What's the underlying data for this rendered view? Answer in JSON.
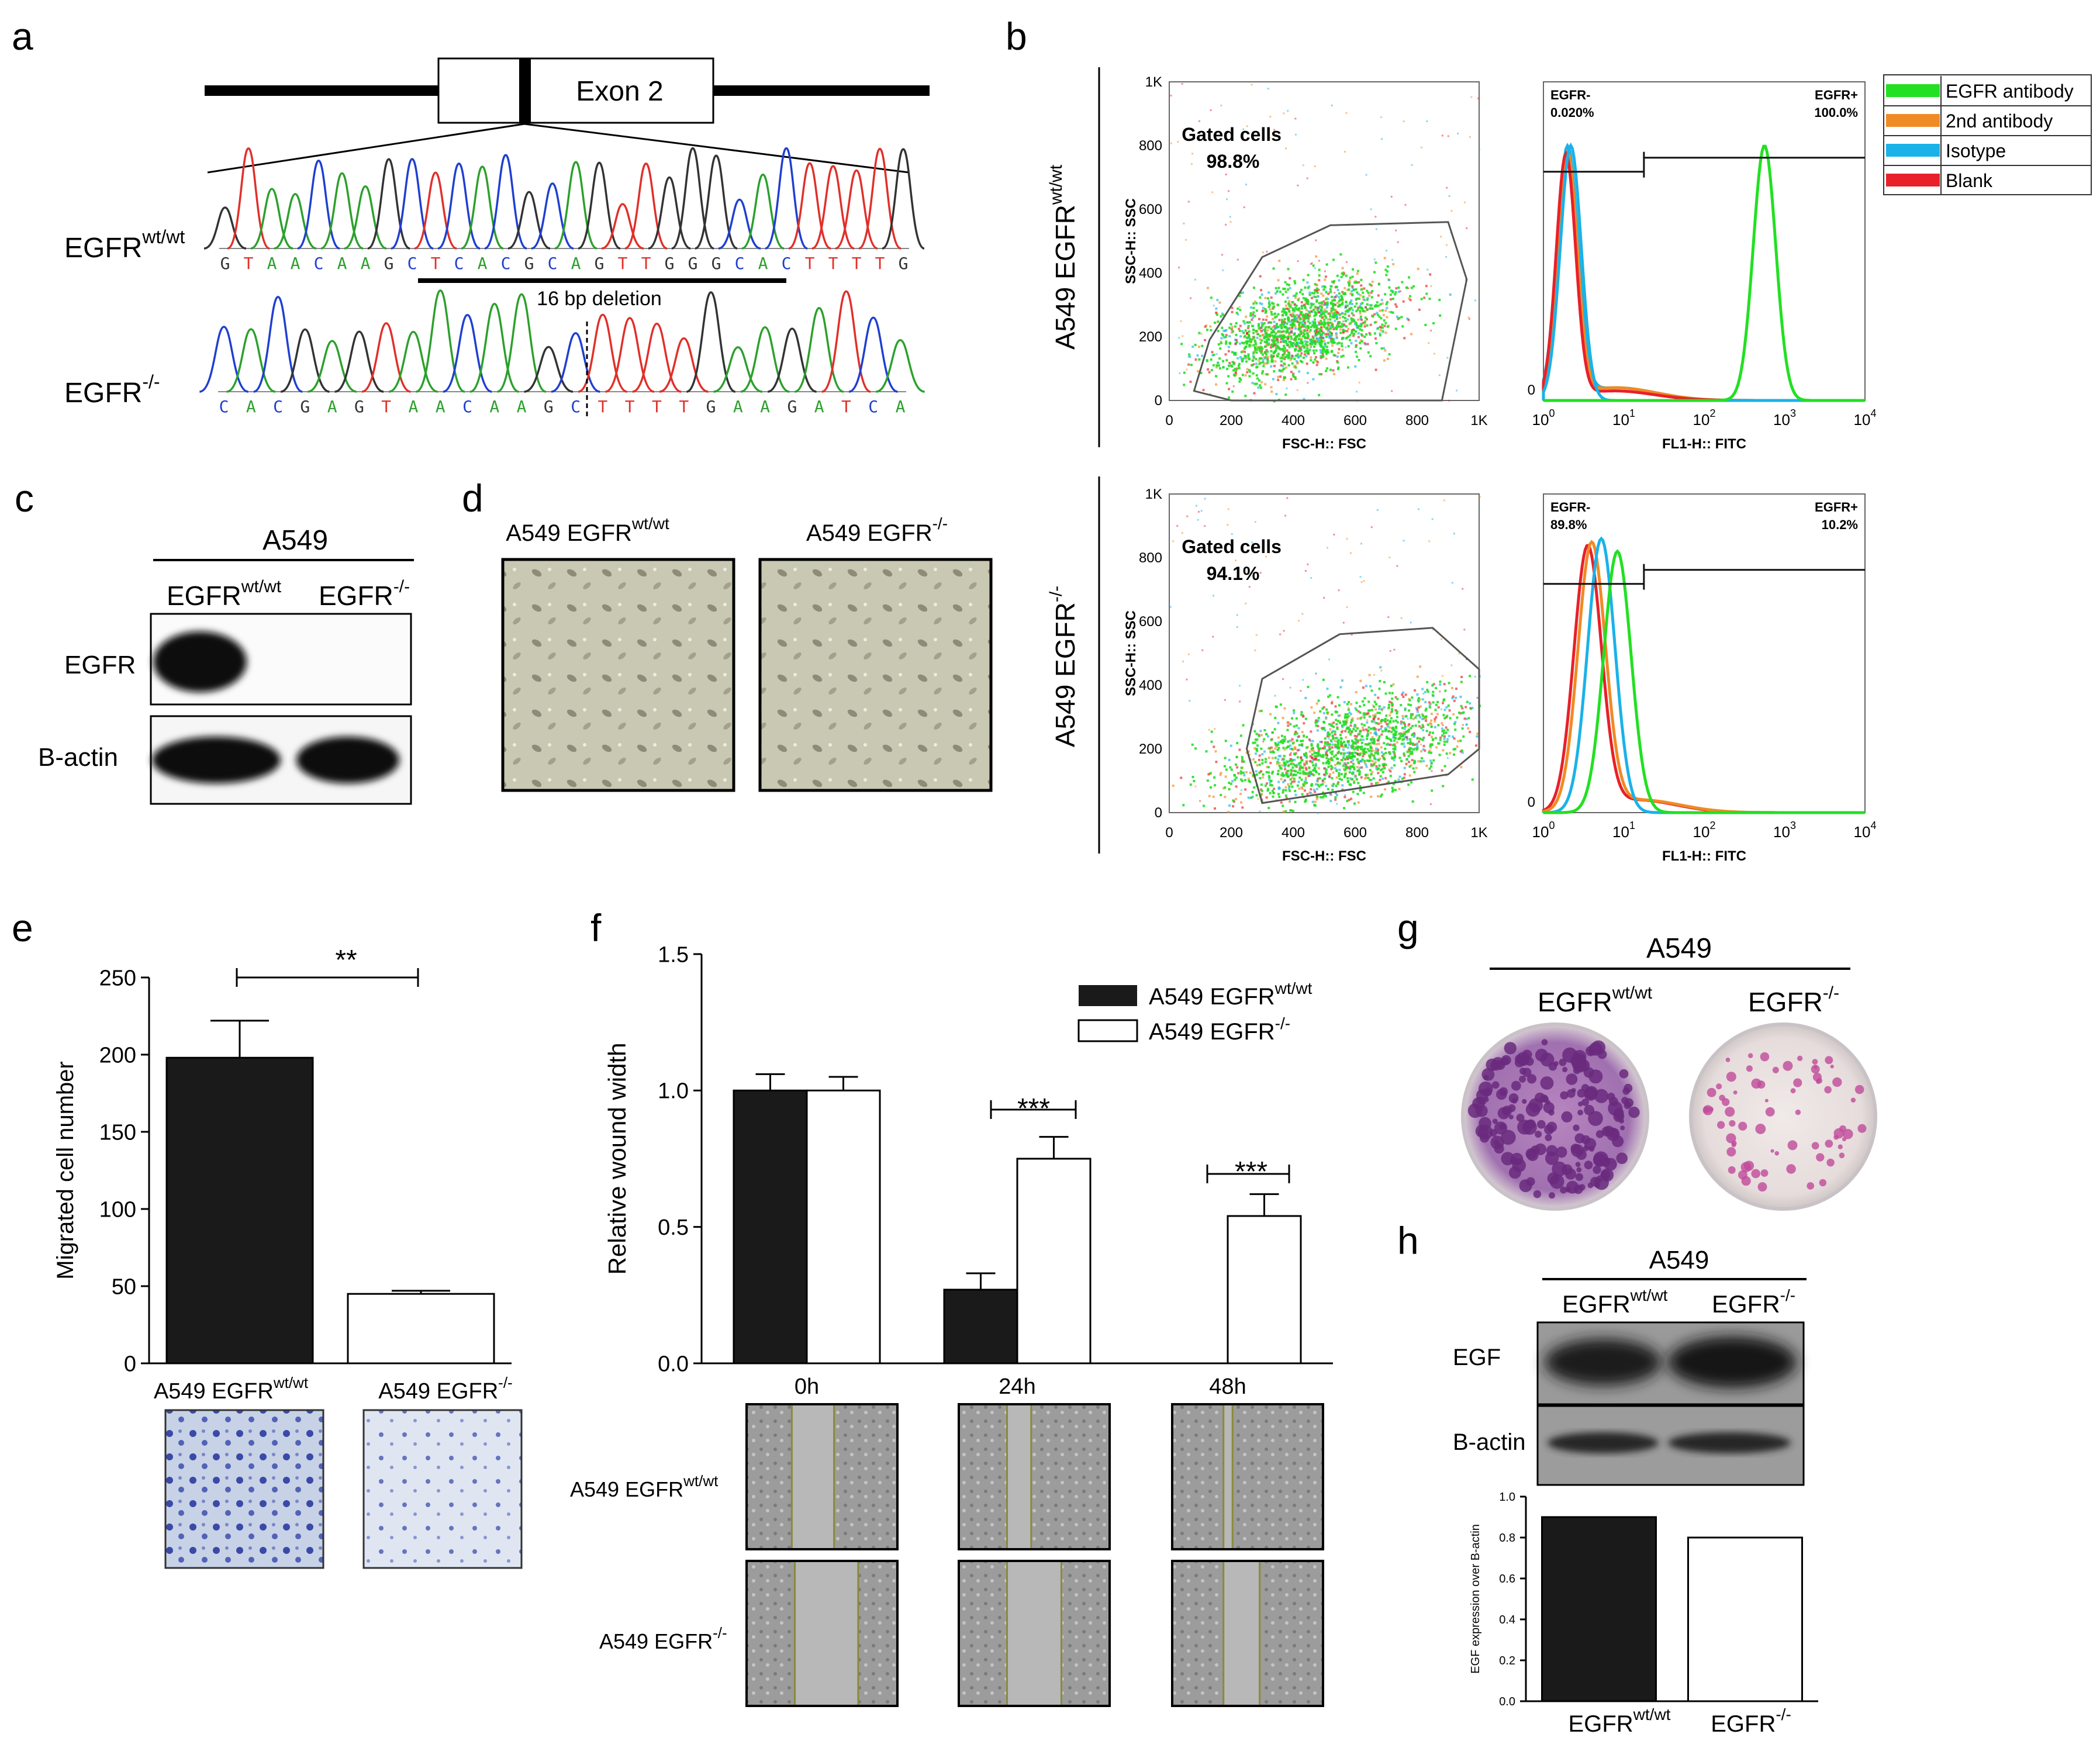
{
  "panels": {
    "a": {
      "letter": "a",
      "exon_label": "Exon 2",
      "wt_label": "EGFR",
      "wt_sup": "wt/wt",
      "ko_label": "EGFR",
      "ko_sup": "-/-",
      "wt_seq": "GTAACAAGCTCACGCAGTTGGGCACTTTTG",
      "ko_seq": "CACGAGTAACAAGCTTTTGAAGATCA",
      "deletion_label": "16 bp deletion"
    },
    "b": {
      "letter": "b",
      "row_labels": [
        {
          "prefix": "A549 EGFR",
          "sup": "wt/wt"
        },
        {
          "prefix": "A549 EGFR",
          "sup": "-/-"
        }
      ],
      "scatter": {
        "y_title": "SSC-H:: SSC",
        "x_title": "FSC-H:: FSC",
        "ticks": [
          "0",
          "200",
          "400",
          "600",
          "800",
          "1K"
        ],
        "gate_title": "Gated cells",
        "gate_values": [
          "98.8%",
          "94.1%"
        ]
      },
      "histogram": {
        "x_title": "FL1-H:: FITC",
        "x_ticks": [
          "0",
          "10",
          "10",
          "10",
          "10"
        ],
        "x_exps": [
          "",
          "0",
          "1",
          "2",
          "3",
          "4"
        ],
        "neg_label": "EGFR-",
        "pos_label": "EGFR+",
        "neg_values": [
          "0.020%",
          "89.8%"
        ],
        "pos_values": [
          "100.0%",
          "10.2%"
        ]
      },
      "legend": [
        {
          "label": "EGFR antibody",
          "color": "#22e022"
        },
        {
          "label": "2nd antibody",
          "color": "#f08a24"
        },
        {
          "label": "Isotype",
          "color": "#1ab2e8"
        },
        {
          "label": "Blank",
          "color": "#e8202a"
        }
      ]
    },
    "c": {
      "letter": "c",
      "title": "A549",
      "col_wt": "EGFR",
      "col_wt_sup": "wt/wt",
      "col_ko": "EGFR",
      "col_ko_sup": "-/-",
      "rows": [
        "EGFR",
        "B-actin"
      ]
    },
    "d": {
      "letter": "d",
      "labels": [
        {
          "prefix": "A549 EGFR",
          "sup": "wt/wt"
        },
        {
          "prefix": "A549 EGFR",
          "sup": "-/-"
        }
      ]
    },
    "e": {
      "letter": "e",
      "significance": "**",
      "cat_labels": [
        {
          "prefix": "A549 EGFR",
          "sup": "wt/wt"
        },
        {
          "prefix": "A549 EGFR",
          "sup": "-/-"
        }
      ]
    },
    "f": {
      "letter": "f",
      "significance": [
        "***",
        "***"
      ],
      "legend": [
        {
          "prefix": "A549 EGFR",
          "sup": "wt/wt"
        },
        {
          "prefix": "A549 EGFR",
          "sup": "-/-"
        }
      ],
      "row_labels": [
        {
          "prefix": "A549 EGFR",
          "sup": "wt/wt"
        },
        {
          "prefix": "A549 EGFR",
          "sup": "-/-"
        }
      ]
    },
    "g": {
      "letter": "g",
      "title": "A549",
      "col_wt": "EGFR",
      "col_wt_sup": "wt/wt",
      "col_ko": "EGFR",
      "col_ko_sup": "-/-"
    },
    "h": {
      "letter": "h",
      "title": "A549",
      "col_wt": "EGFR",
      "col_wt_sup": "wt/wt",
      "col_ko": "EGFR",
      "col_ko_sup": "-/-",
      "rows": [
        "EGF",
        "B-actin"
      ],
      "cat_labels": [
        {
          "prefix": "EGFR",
          "sup": "wt/wt"
        },
        {
          "prefix": "EGFR",
          "sup": "-/-"
        }
      ]
    }
  },
  "colors": {
    "base_A": "#2ca02c",
    "base_C": "#1f3fd0",
    "base_G": "#333333",
    "base_T": "#e0302a",
    "bar_wt": "#1a1a1a",
    "bar_ko": "#ffffff"
  },
  "chart_data": [
    {
      "type": "bar",
      "panel": "e",
      "categories": [
        "A549 EGFR wt/wt",
        "A549 EGFR -/-"
      ],
      "values": [
        198,
        45
      ],
      "errors": [
        24,
        2
      ],
      "ylabel": "Migrated cell number",
      "ylim": [
        0,
        250
      ],
      "yticks": [
        0,
        50,
        100,
        150,
        200,
        250
      ]
    },
    {
      "type": "bar",
      "panel": "f",
      "categories": [
        "0h",
        "24h",
        "48h"
      ],
      "series": [
        {
          "name": "A549 EGFR wt/wt",
          "values": [
            1.0,
            0.27,
            0.0
          ],
          "errors": [
            0.06,
            0.06,
            0.0
          ]
        },
        {
          "name": "A549 EGFR -/-",
          "values": [
            1.0,
            0.75,
            0.54
          ],
          "errors": [
            0.05,
            0.08,
            0.08
          ]
        }
      ],
      "ylabel": "Relative wound width",
      "ylim": [
        0,
        1.5
      ],
      "yticks": [
        "0.0",
        "0.5",
        "1.0",
        "1.5"
      ]
    },
    {
      "type": "bar",
      "panel": "h",
      "categories": [
        "EGFR wt/wt",
        "EGFR -/-"
      ],
      "values": [
        0.9,
        0.8
      ],
      "ylabel": "EGF expression over B-actin",
      "ylim": [
        0,
        1.0
      ],
      "yticks": [
        "0.0",
        "0.2",
        "0.4",
        "0.6",
        "0.8",
        "1.0"
      ]
    }
  ]
}
